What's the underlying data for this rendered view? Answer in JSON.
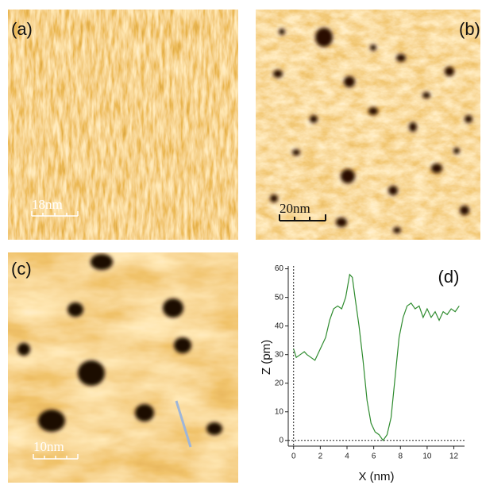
{
  "panels": [
    {
      "label": "(a)",
      "scale_bar": "18nm"
    },
    {
      "label": "(b)",
      "scale_bar": "20nm"
    },
    {
      "label": "(c)",
      "scale_bar": "10nm"
    }
  ],
  "chart_data": {
    "type": "line",
    "label": "(d)",
    "x_label": "X (nm)",
    "y_label": "Z (pm)",
    "x": [
      0,
      0.2,
      0.5,
      0.8,
      1.0,
      1.3,
      1.6,
      2.0,
      2.4,
      2.7,
      3.0,
      3.3,
      3.6,
      3.9,
      4.2,
      4.4,
      4.6,
      4.9,
      5.2,
      5.5,
      5.8,
      6.1,
      6.4,
      6.7,
      7.0,
      7.3,
      7.6,
      7.9,
      8.2,
      8.5,
      8.8,
      9.1,
      9.4,
      9.7,
      10.0,
      10.3,
      10.6,
      10.9,
      11.2,
      11.5,
      11.8,
      12.1,
      12.4
    ],
    "series": [
      {
        "color": "#2e8b2e",
        "values": [
          32,
          29,
          30,
          31,
          30,
          29,
          28,
          32,
          36,
          42,
          46,
          47,
          46,
          50,
          58,
          57,
          50,
          40,
          28,
          14,
          6,
          3,
          2,
          0,
          2,
          8,
          22,
          36,
          43,
          47,
          48,
          46,
          47,
          43,
          46,
          43,
          45,
          42,
          45,
          44,
          46,
          45,
          47
        ]
      }
    ],
    "xlim": [
      -0.4,
      12.8
    ],
    "ylim": [
      -2,
      61
    ],
    "xticks": [
      0,
      2,
      4,
      6,
      8,
      10,
      12
    ],
    "yticks": [
      0,
      10,
      20,
      30,
      40,
      50,
      60
    ]
  }
}
